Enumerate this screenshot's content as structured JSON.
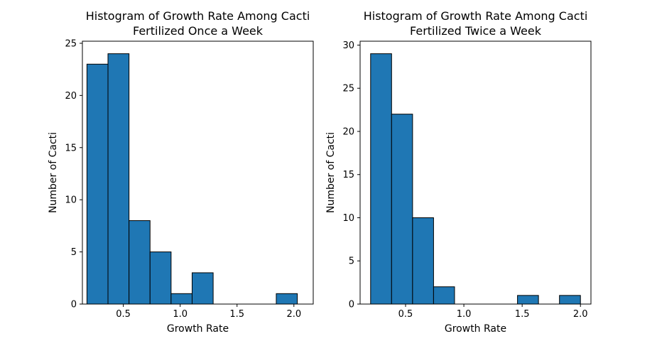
{
  "chart_data": [
    {
      "type": "bar",
      "title_line1": "Histogram of Growth Rate Among Cacti",
      "title_line2": "Fertilized Once a Week",
      "xlabel": "Growth Rate",
      "ylabel": "Number of Cacti",
      "xlim": [
        0.14,
        2.17
      ],
      "ylim": [
        0,
        25.2
      ],
      "xticks": [
        0.5,
        1.0,
        1.5,
        2.0
      ],
      "xtick_labels": [
        "0.5",
        "1.0",
        "1.5",
        "2.0"
      ],
      "yticks": [
        0,
        5,
        10,
        15,
        20,
        25
      ],
      "ytick_labels": [
        "0",
        "5",
        "10",
        "15",
        "20",
        "25"
      ],
      "bin_edges": [
        0.18,
        0.365,
        0.55,
        0.735,
        0.92,
        1.105,
        1.29,
        1.475,
        1.66,
        1.845,
        2.03
      ],
      "values": [
        23,
        24,
        8,
        5,
        1,
        3,
        0,
        0,
        0,
        1
      ],
      "bar_color": "#1f77b4",
      "edge_color": "#000000",
      "grid": false,
      "legend": false
    },
    {
      "type": "bar",
      "title_line1": "Histogram of Growth Rate Among Cacti",
      "title_line2": "Fertilized Twice a Week",
      "xlabel": "Growth Rate",
      "ylabel": "Number of Cacti",
      "xlim": [
        0.11,
        2.09
      ],
      "ylim": [
        0,
        30.45
      ],
      "xticks": [
        0.5,
        1.0,
        1.5,
        2.0
      ],
      "xtick_labels": [
        "0.5",
        "1.0",
        "1.5",
        "2.0"
      ],
      "yticks": [
        0,
        5,
        10,
        15,
        20,
        25,
        30
      ],
      "ytick_labels": [
        "0",
        "5",
        "10",
        "15",
        "20",
        "25",
        "30"
      ],
      "bin_edges": [
        0.2,
        0.38,
        0.56,
        0.74,
        0.92,
        1.1,
        1.28,
        1.46,
        1.64,
        1.82,
        2.0
      ],
      "values": [
        29,
        22,
        10,
        2,
        0,
        0,
        0,
        1,
        0,
        1
      ],
      "bar_color": "#1f77b4",
      "edge_color": "#000000",
      "grid": false,
      "legend": false
    }
  ]
}
